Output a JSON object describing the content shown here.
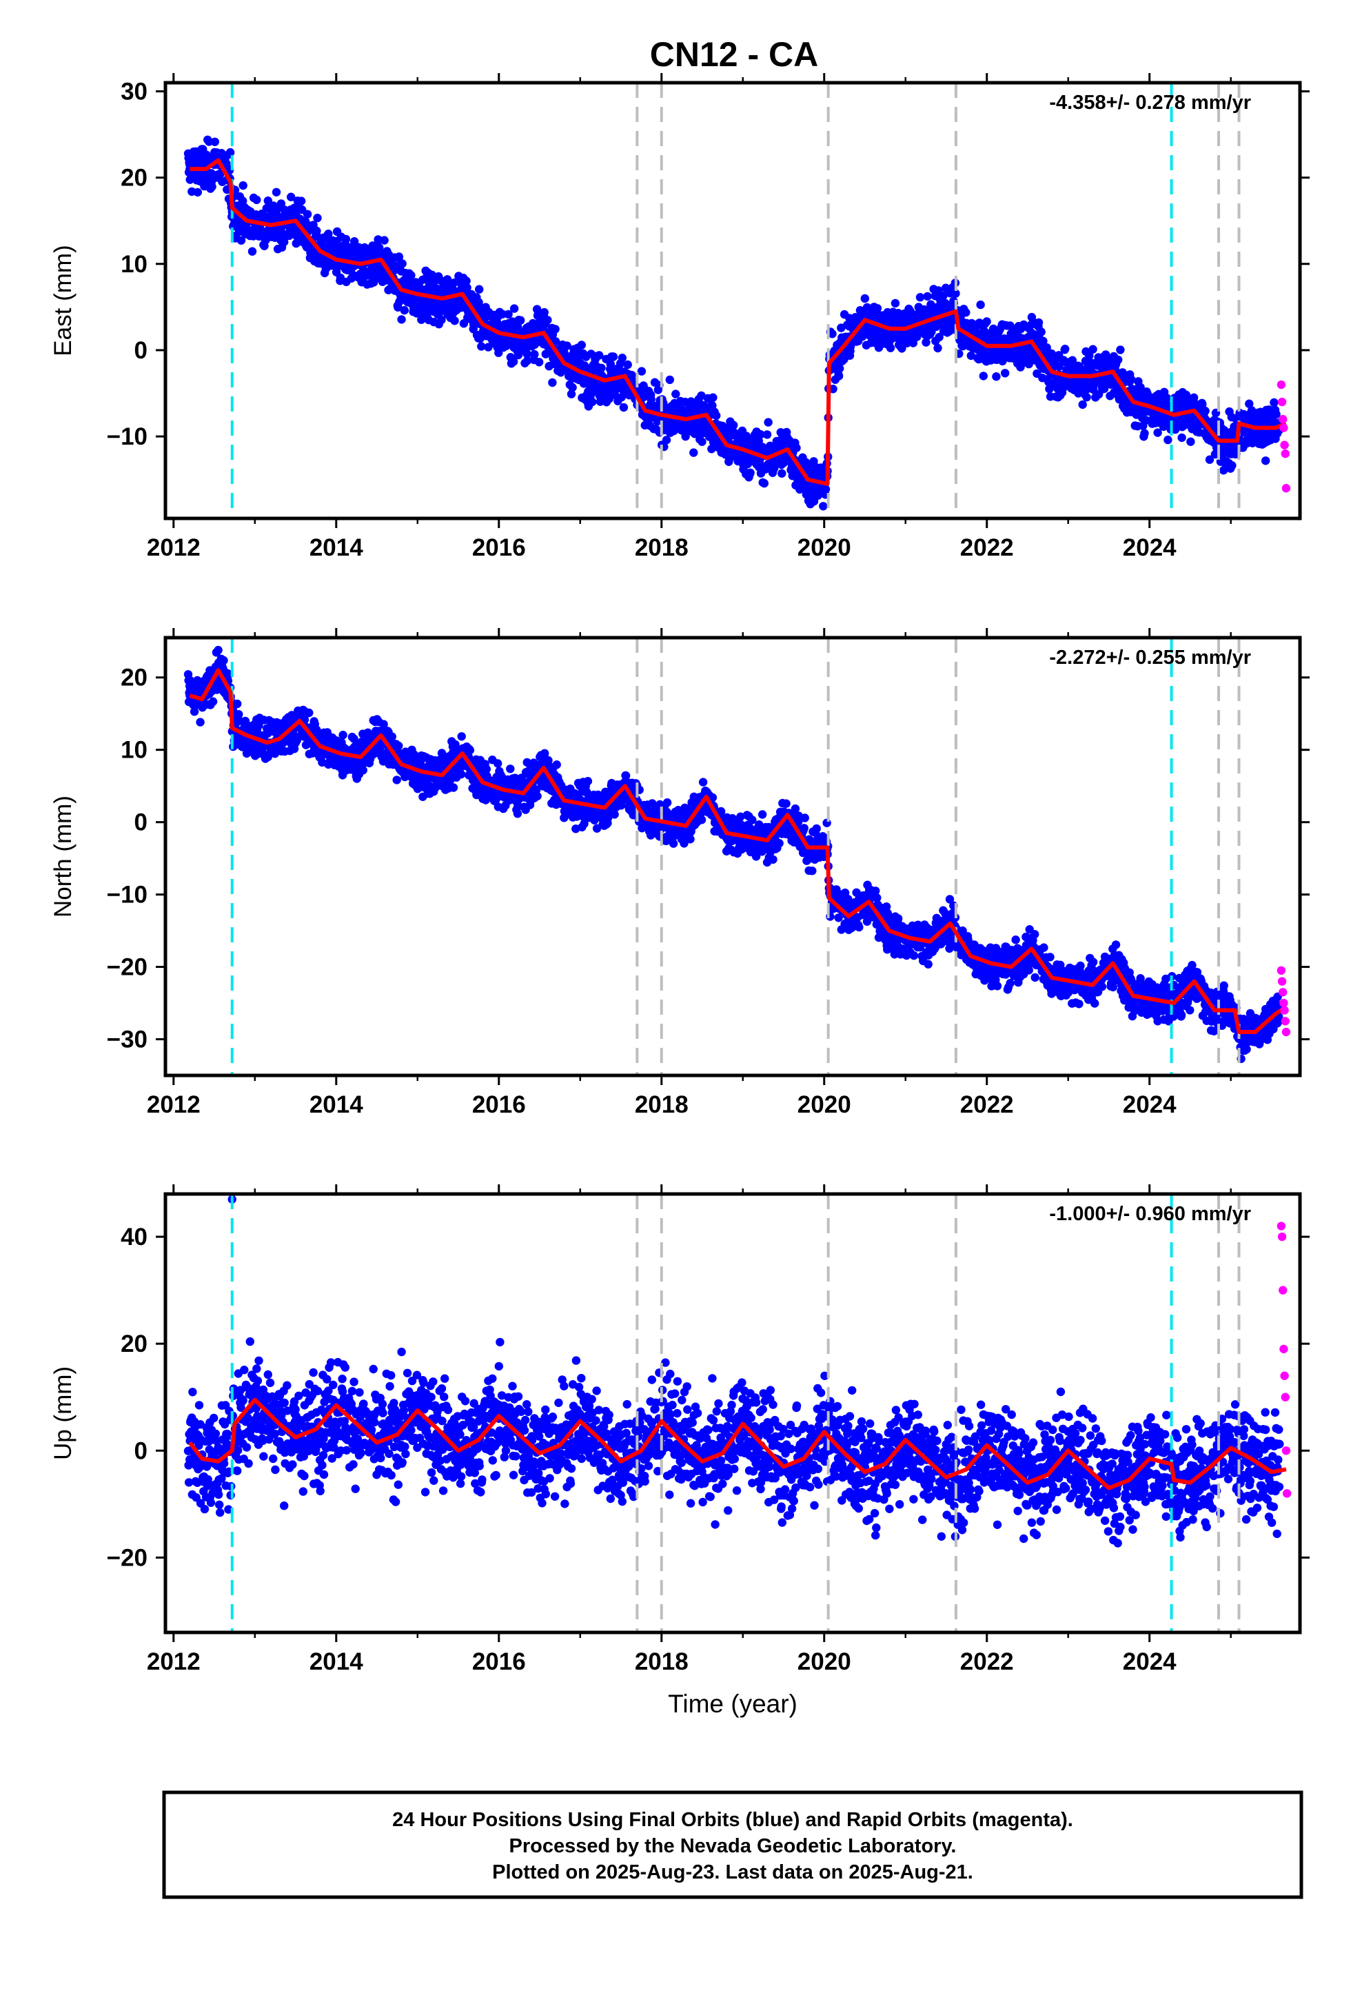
{
  "title": "CN12 - CA",
  "colors": {
    "final": "#0000ff",
    "rapid": "#ff00ff",
    "model": "#ff0000",
    "event_cyan": "#00e5ee",
    "event_gray": "#bebebe"
  },
  "chart_data": [
    {
      "type": "scatter",
      "panel": "east",
      "ylabel": "East (mm)",
      "xlabel": "",
      "rate_label": "-4.358+/- 0.278 mm/yr",
      "xlim": [
        2011.9,
        2025.85
      ],
      "ylim": [
        -19.5,
        31
      ],
      "xticks": [
        "2012",
        "2014",
        "2016",
        "2018",
        "2020",
        "2022",
        "2024"
      ],
      "yticks": [
        "30",
        "20",
        "10",
        "0",
        "−10"
      ],
      "ytick_values": [
        30,
        20,
        10,
        0,
        -10
      ],
      "grid": false,
      "legend": "none",
      "events": [
        {
          "x": 2012.72,
          "kind": "cyan"
        },
        {
          "x": 2017.7,
          "kind": "gray"
        },
        {
          "x": 2018.0,
          "kind": "gray"
        },
        {
          "x": 2020.05,
          "kind": "gray"
        },
        {
          "x": 2021.62,
          "kind": "gray"
        },
        {
          "x": 2024.27,
          "kind": "cyan"
        },
        {
          "x": 2024.85,
          "kind": "gray"
        },
        {
          "x": 2025.1,
          "kind": "gray"
        }
      ],
      "series": [
        {
          "name": "Final orbits",
          "color": "#0000ff",
          "x": [
            2012.2,
            2012.5,
            2013.0,
            2013.5,
            2014.0,
            2014.5,
            2015.0,
            2015.5,
            2016.0,
            2016.5,
            2017.0,
            2017.5,
            2018.0,
            2018.5,
            2019.0,
            2019.5,
            2019.95,
            2020.1,
            2020.5,
            2021.0,
            2021.5,
            2022.0,
            2022.5,
            2023.0,
            2023.5,
            2024.0,
            2024.5,
            2025.0,
            2025.5
          ],
          "y": [
            21,
            21.5,
            14.8,
            14,
            11,
            9.5,
            6.5,
            5.5,
            2.5,
            1.5,
            -1.5,
            -3.5,
            -6.5,
            -8,
            -10.5,
            -12,
            -15,
            -0.5,
            3,
            2.5,
            4,
            0.5,
            0.5,
            -2.5,
            -3,
            -6,
            -7.5,
            -10,
            -9
          ]
        },
        {
          "name": "Rapid orbits",
          "color": "#ff00ff",
          "x": [
            2025.62,
            2025.63,
            2025.64,
            2025.65,
            2025.66,
            2025.67,
            2025.68
          ],
          "y": [
            -4,
            -6,
            -8,
            -9,
            -11,
            -12,
            -16
          ]
        }
      ],
      "model": {
        "x": [
          2012.2,
          2012.4,
          2012.55,
          2012.7,
          2012.72,
          2012.9,
          2013.2,
          2013.5,
          2013.8,
          2014.0,
          2014.3,
          2014.55,
          2014.8,
          2015.0,
          2015.3,
          2015.55,
          2015.8,
          2016.0,
          2016.3,
          2016.55,
          2016.8,
          2017.0,
          2017.3,
          2017.55,
          2017.8,
          2018.0,
          2018.3,
          2018.55,
          2018.8,
          2019.0,
          2019.3,
          2019.55,
          2019.8,
          2020.04,
          2020.06,
          2020.2,
          2020.5,
          2020.8,
          2021.0,
          2021.3,
          2021.62,
          2021.65,
          2022.0,
          2022.3,
          2022.55,
          2022.8,
          2023.0,
          2023.3,
          2023.55,
          2023.8,
          2024.0,
          2024.3,
          2024.55,
          2024.85,
          2025.08,
          2025.1,
          2025.3,
          2025.55,
          2025.68
        ],
        "y": [
          21,
          21,
          22,
          19.5,
          16.5,
          15,
          14.5,
          15,
          11.5,
          10.5,
          10,
          10.5,
          7,
          6.5,
          6,
          6.5,
          3,
          2,
          1.5,
          2,
          -1.5,
          -2.5,
          -3.5,
          -3,
          -7,
          -7.5,
          -8,
          -7.5,
          -11,
          -11.5,
          -12.5,
          -11.5,
          -15,
          -15.5,
          -1.5,
          0,
          3.5,
          2.5,
          2.5,
          3.5,
          4.5,
          2.5,
          0.5,
          0.5,
          1,
          -2.5,
          -3,
          -3,
          -2.5,
          -6,
          -6.5,
          -7.5,
          -7,
          -10.5,
          -10.5,
          -8.5,
          -9,
          -9,
          -8.5
        ]
      }
    },
    {
      "type": "scatter",
      "panel": "north",
      "ylabel": "North (mm)",
      "xlabel": "",
      "rate_label": "-2.272+/- 0.255 mm/yr",
      "xlim": [
        2011.9,
        2025.85
      ],
      "ylim": [
        -35,
        25.5
      ],
      "xticks": [
        "2012",
        "2014",
        "2016",
        "2018",
        "2020",
        "2022",
        "2024"
      ],
      "yticks": [
        "20",
        "10",
        "0",
        "−10",
        "−20",
        "−30"
      ],
      "ytick_values": [
        20,
        10,
        0,
        -10,
        -20,
        -30
      ],
      "grid": false,
      "legend": "none",
      "events": [
        {
          "x": 2012.72,
          "kind": "cyan"
        },
        {
          "x": 2017.7,
          "kind": "gray"
        },
        {
          "x": 2018.0,
          "kind": "gray"
        },
        {
          "x": 2020.05,
          "kind": "gray"
        },
        {
          "x": 2021.62,
          "kind": "gray"
        },
        {
          "x": 2024.27,
          "kind": "cyan"
        },
        {
          "x": 2024.85,
          "kind": "gray"
        },
        {
          "x": 2025.1,
          "kind": "gray"
        }
      ],
      "series": [
        {
          "name": "Final orbits",
          "color": "#0000ff",
          "x": [
            2012.2,
            2012.55,
            2013.0,
            2013.55,
            2014.0,
            2014.55,
            2015.0,
            2015.55,
            2016.0,
            2016.55,
            2017.0,
            2017.55,
            2018.0,
            2018.55,
            2019.0,
            2019.55,
            2019.95,
            2020.1,
            2020.55,
            2021.0,
            2021.55,
            2022.0,
            2022.55,
            2023.0,
            2023.55,
            2024.0,
            2024.55,
            2025.0,
            2025.5
          ],
          "y": [
            17.5,
            21,
            11,
            13.5,
            9.5,
            11.5,
            6.5,
            9,
            4.5,
            7,
            2.5,
            5,
            0,
            3.5,
            -2,
            1,
            -3.5,
            -12,
            -11,
            -16,
            -14,
            -19,
            -17.5,
            -22,
            -19.5,
            -24,
            -22,
            -26,
            -26
          ]
        },
        {
          "name": "Rapid orbits",
          "color": "#ff00ff",
          "x": [
            2025.62,
            2025.63,
            2025.64,
            2025.65,
            2025.66,
            2025.67,
            2025.68
          ],
          "y": [
            -20.5,
            -22,
            -23.5,
            -25,
            -26,
            -27.5,
            -29
          ]
        }
      ],
      "model": {
        "x": [
          2012.2,
          2012.35,
          2012.55,
          2012.7,
          2012.72,
          2012.9,
          2013.15,
          2013.3,
          2013.55,
          2013.8,
          2014.05,
          2014.3,
          2014.55,
          2014.8,
          2015.05,
          2015.3,
          2015.55,
          2015.8,
          2016.05,
          2016.3,
          2016.55,
          2016.8,
          2017.05,
          2017.3,
          2017.55,
          2017.8,
          2018.05,
          2018.3,
          2018.55,
          2018.8,
          2019.05,
          2019.3,
          2019.55,
          2019.8,
          2020.04,
          2020.06,
          2020.3,
          2020.55,
          2020.8,
          2021.05,
          2021.3,
          2021.55,
          2021.8,
          2022.05,
          2022.3,
          2022.55,
          2022.8,
          2023.05,
          2023.3,
          2023.55,
          2023.8,
          2024.05,
          2024.3,
          2024.55,
          2024.8,
          2025.05,
          2025.1,
          2025.3,
          2025.55,
          2025.68
        ],
        "y": [
          17.5,
          17,
          21,
          18,
          13,
          12,
          11,
          11.5,
          14,
          10.5,
          9.5,
          9,
          12,
          8,
          7,
          6.5,
          9.5,
          5.5,
          4.5,
          4,
          7.5,
          3,
          2.5,
          2,
          5,
          0.5,
          0,
          -0.5,
          3.5,
          -1.5,
          -2,
          -2.5,
          1,
          -3.5,
          -3.5,
          -10.5,
          -13,
          -11,
          -15,
          -16,
          -16.5,
          -14,
          -18.5,
          -19.5,
          -20,
          -17.5,
          -21.5,
          -22,
          -22.5,
          -19.5,
          -24,
          -24.5,
          -25,
          -22,
          -26,
          -26,
          -29,
          -29,
          -26.5,
          -25.5
        ]
      }
    },
    {
      "type": "scatter",
      "panel": "up",
      "ylabel": "Up (mm)",
      "xlabel": "Time (year)",
      "rate_label": "-1.000+/- 0.960 mm/yr",
      "xlim": [
        2011.9,
        2025.85
      ],
      "ylim": [
        -34,
        48
      ],
      "xticks": [
        "2012",
        "2014",
        "2016",
        "2018",
        "2020",
        "2022",
        "2024"
      ],
      "yticks": [
        "40",
        "20",
        "0",
        "−20"
      ],
      "ytick_values": [
        40,
        20,
        0,
        -20
      ],
      "grid": false,
      "legend": "none",
      "events": [
        {
          "x": 2012.72,
          "kind": "cyan"
        },
        {
          "x": 2017.7,
          "kind": "gray"
        },
        {
          "x": 2018.0,
          "kind": "gray"
        },
        {
          "x": 2020.05,
          "kind": "gray"
        },
        {
          "x": 2021.62,
          "kind": "gray"
        },
        {
          "x": 2024.27,
          "kind": "cyan"
        },
        {
          "x": 2024.85,
          "kind": "gray"
        },
        {
          "x": 2025.1,
          "kind": "gray"
        }
      ],
      "series": [
        {
          "name": "Final orbits",
          "color": "#0000ff",
          "x": [
            2012.2,
            2012.72,
            2013.0,
            2013.5,
            2014.0,
            2014.5,
            2015.0,
            2015.5,
            2016.0,
            2016.5,
            2017.0,
            2017.5,
            2018.0,
            2018.5,
            2019.0,
            2019.5,
            2020.0,
            2020.5,
            2021.0,
            2021.5,
            2022.0,
            2022.5,
            2023.0,
            2023.5,
            2024.0,
            2024.5,
            2025.0,
            2025.5
          ],
          "y": [
            0,
            47,
            9,
            3,
            8,
            2,
            7,
            1,
            6,
            0,
            6,
            -2,
            5,
            -2,
            5,
            -3,
            3,
            -4,
            2,
            -5,
            0,
            -6,
            -1,
            -7,
            -2,
            -6,
            0,
            -4
          ]
        },
        {
          "name": "Rapid orbits",
          "color": "#ff00ff",
          "x": [
            2025.62,
            2025.63,
            2025.64,
            2025.65,
            2025.66,
            2025.67,
            2025.68,
            2025.69
          ],
          "y": [
            42,
            40,
            30,
            19,
            14,
            10,
            0,
            -8
          ]
        }
      ],
      "model": {
        "x": [
          2012.2,
          2012.35,
          2012.55,
          2012.72,
          2012.75,
          2013.0,
          2013.3,
          2013.5,
          2013.75,
          2014.0,
          2014.25,
          2014.5,
          2014.75,
          2015.0,
          2015.25,
          2015.5,
          2015.75,
          2016.0,
          2016.25,
          2016.5,
          2016.75,
          2017.0,
          2017.25,
          2017.5,
          2017.75,
          2018.0,
          2018.25,
          2018.5,
          2018.75,
          2019.0,
          2019.25,
          2019.5,
          2019.75,
          2020.0,
          2020.25,
          2020.5,
          2020.75,
          2021.0,
          2021.25,
          2021.5,
          2021.75,
          2022.0,
          2022.25,
          2022.5,
          2022.75,
          2023.0,
          2023.25,
          2023.5,
          2023.75,
          2024.0,
          2024.27,
          2024.3,
          2024.5,
          2024.75,
          2025.0,
          2025.25,
          2025.5,
          2025.68
        ],
        "y": [
          1.5,
          -1.5,
          -2,
          0,
          5,
          9.5,
          5,
          2.5,
          4,
          8.5,
          5,
          1.5,
          3,
          7.5,
          4,
          0,
          2,
          6.5,
          3,
          -0.5,
          1,
          5.5,
          2,
          -2,
          0,
          5.5,
          1.5,
          -2,
          -0.5,
          5,
          1,
          -3,
          -1.5,
          3.5,
          -0.5,
          -4,
          -2.5,
          2,
          -1.5,
          -5,
          -3.5,
          1,
          -2.5,
          -6,
          -4.5,
          0,
          -3.5,
          -7,
          -5.5,
          -1.5,
          -2.5,
          -5.5,
          -6,
          -3,
          0.5,
          -1.5,
          -4,
          -3.5
        ]
      }
    }
  ],
  "caption": {
    "line1": "24 Hour Positions Using Final Orbits (blue) and Rapid Orbits (magenta).",
    "line2": "Processed by the Nevada Geodetic Laboratory.",
    "line3": "Plotted on 2025-Aug-23. Last data on 2025-Aug-21."
  }
}
